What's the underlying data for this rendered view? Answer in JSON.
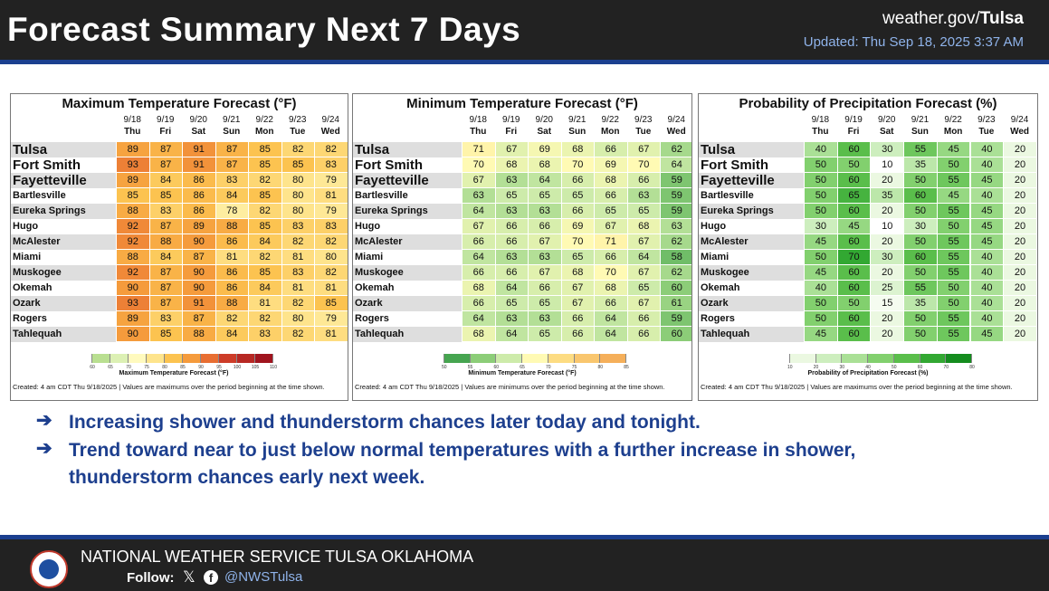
{
  "header": {
    "title": "Forecast Summary Next 7 Days",
    "site_prefix": "weather.gov/",
    "site_office": "Tulsa",
    "updated": "Updated: Thu Sep 18, 2025 3:37 AM"
  },
  "days": [
    {
      "date": "9/18",
      "dow": "Thu"
    },
    {
      "date": "9/19",
      "dow": "Fri"
    },
    {
      "date": "9/20",
      "dow": "Sat"
    },
    {
      "date": "9/21",
      "dow": "Sun"
    },
    {
      "date": "9/22",
      "dow": "Mon"
    },
    {
      "date": "9/23",
      "dow": "Tue"
    },
    {
      "date": "9/24",
      "dow": "Wed"
    }
  ],
  "locations": [
    "Tulsa",
    "Fort Smith",
    "Fayetteville",
    "Bartlesville",
    "Eureka Springs",
    "Hugo",
    "McAlester",
    "Miami",
    "Muskogee",
    "Okemah",
    "Ozark",
    "Rogers",
    "Tahlequah"
  ],
  "panels": [
    {
      "key": "max",
      "title": "Maximum Temperature Forecast (°F)",
      "values": [
        [
          89,
          87,
          91,
          87,
          85,
          82,
          82
        ],
        [
          93,
          87,
          91,
          87,
          85,
          85,
          83
        ],
        [
          89,
          84,
          86,
          83,
          82,
          80,
          79
        ],
        [
          85,
          85,
          86,
          84,
          85,
          80,
          81
        ],
        [
          88,
          83,
          86,
          78,
          82,
          80,
          79
        ],
        [
          92,
          87,
          89,
          88,
          85,
          83,
          83
        ],
        [
          92,
          88,
          90,
          86,
          84,
          82,
          82
        ],
        [
          88,
          84,
          87,
          81,
          82,
          81,
          80
        ],
        [
          92,
          87,
          90,
          86,
          85,
          83,
          82
        ],
        [
          90,
          87,
          90,
          86,
          84,
          81,
          81
        ],
        [
          93,
          87,
          91,
          88,
          81,
          82,
          85
        ],
        [
          89,
          83,
          87,
          82,
          82,
          80,
          79
        ],
        [
          90,
          85,
          88,
          84,
          83,
          82,
          81
        ]
      ],
      "colorbar": {
        "ticks": [
          "60",
          "65",
          "70",
          "75",
          "80",
          "85",
          "90",
          "95",
          "100",
          "105",
          "110"
        ],
        "label": "Maximum Temperature Forecast (°F)"
      },
      "credit": "Created: 4 am CDT Thu 9/18/2025  |  Values are maximums over the period beginning at the time shown."
    },
    {
      "key": "min",
      "title": "Minimum Temperature Forecast (°F)",
      "values": [
        [
          71,
          67,
          69,
          68,
          66,
          67,
          62
        ],
        [
          70,
          68,
          68,
          70,
          69,
          70,
          64
        ],
        [
          67,
          63,
          64,
          66,
          68,
          66,
          59
        ],
        [
          63,
          65,
          65,
          65,
          66,
          63,
          59
        ],
        [
          64,
          63,
          63,
          66,
          65,
          65,
          59
        ],
        [
          67,
          66,
          66,
          69,
          67,
          68,
          63
        ],
        [
          66,
          66,
          67,
          70,
          71,
          67,
          62
        ],
        [
          64,
          63,
          63,
          65,
          66,
          64,
          58
        ],
        [
          66,
          66,
          67,
          68,
          70,
          67,
          62
        ],
        [
          68,
          64,
          66,
          67,
          68,
          65,
          60
        ],
        [
          66,
          65,
          65,
          67,
          66,
          67,
          61
        ],
        [
          64,
          63,
          63,
          66,
          64,
          66,
          59
        ],
        [
          68,
          64,
          65,
          66,
          64,
          66,
          60
        ]
      ],
      "colorbar": {
        "ticks": [
          "50",
          "55",
          "60",
          "65",
          "70",
          "75",
          "80",
          "85"
        ],
        "label": "Minimum Temperature Forecast (°F)"
      },
      "credit": "Created: 4 am CDT Thu 9/18/2025  |  Values are minimums over the period beginning at the time shown."
    },
    {
      "key": "pop",
      "title": "Probability of Precipitation Forecast (%)",
      "values": [
        [
          40,
          60,
          30,
          55,
          45,
          40,
          20
        ],
        [
          50,
          50,
          10,
          35,
          50,
          40,
          20
        ],
        [
          50,
          60,
          20,
          50,
          55,
          45,
          20
        ],
        [
          50,
          65,
          35,
          60,
          45,
          40,
          20
        ],
        [
          50,
          60,
          20,
          50,
          55,
          45,
          20
        ],
        [
          30,
          45,
          10,
          30,
          50,
          45,
          20
        ],
        [
          45,
          60,
          20,
          50,
          55,
          45,
          20
        ],
        [
          50,
          70,
          30,
          60,
          55,
          40,
          20
        ],
        [
          45,
          60,
          20,
          50,
          55,
          40,
          20
        ],
        [
          40,
          60,
          25,
          55,
          50,
          40,
          20
        ],
        [
          50,
          50,
          15,
          35,
          50,
          40,
          20
        ],
        [
          50,
          60,
          20,
          50,
          55,
          40,
          20
        ],
        [
          45,
          60,
          20,
          50,
          55,
          45,
          20
        ]
      ],
      "colorbar": {
        "ticks": [
          "10",
          "20",
          "30",
          "40",
          "50",
          "60",
          "70",
          "80"
        ],
        "label": "Probability of Precipitation Forecast (%)"
      },
      "credit": "Created: 4 am CDT Thu 9/18/2025  |  Values are maximums over the period beginning at the time shown."
    }
  ],
  "bullets": [
    {
      "arrow": "➔",
      "lines": [
        "Increasing shower and thunderstorm chances later today and tonight."
      ]
    },
    {
      "arrow": "➔",
      "lines": [
        "Trend toward near to just below normal temperatures with a further increase in shower,",
        "thunderstorm chances early next week."
      ]
    }
  ],
  "footer": {
    "org": "NATIONAL WEATHER SERVICE TULSA OKLAHOMA",
    "follow": "Follow:",
    "x_icon": "x-icon",
    "facebook_icon": "facebook-icon",
    "handle": "@NWSTulsa"
  }
}
